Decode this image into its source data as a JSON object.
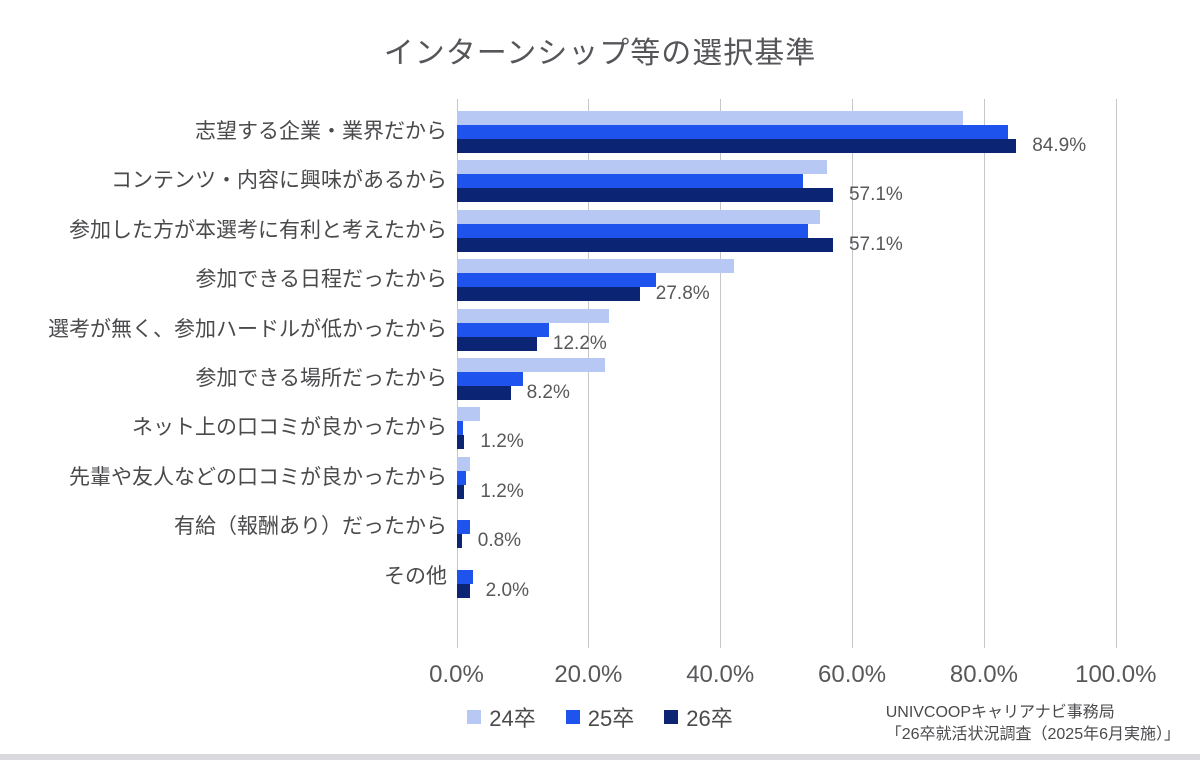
{
  "title": "インターンシップ等の選択基準",
  "source": {
    "line1": "UNIVCOOPキャリアナビ事務局",
    "line2": "「26卒就活状況調査（2025年6月実施）」"
  },
  "legend": [
    {
      "label": "24卒",
      "color": "#b7c8f4"
    },
    {
      "label": "25卒",
      "color": "#1e53ee"
    },
    {
      "label": "26卒",
      "color": "#0b2473"
    }
  ],
  "colors": {
    "series_24": "#b7c8f4",
    "series_25": "#1e53ee",
    "series_26": "#0b2473",
    "gridline": "#c7c7cb",
    "text": "#4a4a4d"
  },
  "chart_data": {
    "type": "bar",
    "orientation": "horizontal",
    "title": "インターンシップ等の選択基準",
    "categories": [
      "志望する企業・業界だから",
      "コンテンツ・内容に興味があるから",
      "参加した方が本選考に有利と考えたから",
      "参加できる日程だったから",
      "選考が無く、参加ハードルが低かったから",
      "参加できる場所だったから",
      "ネット上の口コミが良かったから",
      "先輩や友人などの口コミが良かったから",
      "有給（報酬あり）だったから",
      "その他"
    ],
    "series": [
      {
        "name": "24卒",
        "color": "#b7c8f4",
        "values": [
          76.8,
          56.2,
          55.1,
          42.1,
          23.2,
          22.5,
          3.5,
          2.0,
          0,
          0
        ]
      },
      {
        "name": "25卒",
        "color": "#1e53ee",
        "values": [
          83.7,
          52.6,
          53.3,
          30.2,
          14.0,
          10.1,
          1.0,
          1.4,
          2.1,
          2.5
        ]
      },
      {
        "name": "26卒",
        "color": "#0b2473",
        "values": [
          84.9,
          57.1,
          57.1,
          27.8,
          12.2,
          8.2,
          1.2,
          1.2,
          0.8,
          2.0
        ]
      }
    ],
    "data_labels": {
      "series": "26卒",
      "values": [
        "84.9%",
        "57.1%",
        "57.1%",
        "27.8%",
        "12.2%",
        "8.2%",
        "1.2%",
        "1.2%",
        "0.8%",
        "2.0%"
      ]
    },
    "x_ticks": [
      "0.0%",
      "20.0%",
      "40.0%",
      "60.0%",
      "80.0%",
      "100.0%"
    ],
    "xlim": [
      0,
      100
    ],
    "grid": true,
    "legend_position": "bottom"
  }
}
